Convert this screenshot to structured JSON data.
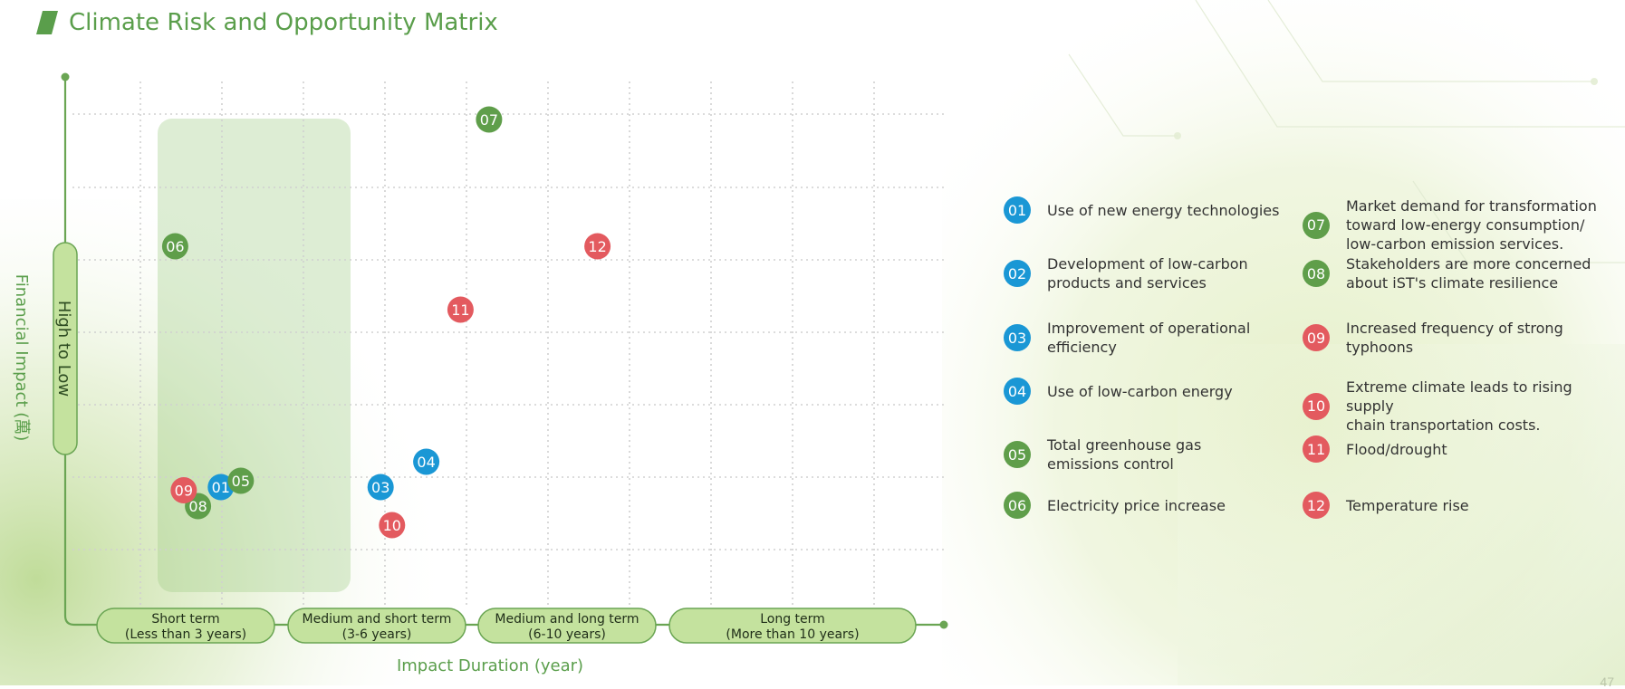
{
  "title": "Climate Risk and Opportunity Matrix",
  "page_number": "47",
  "colors": {
    "blue": "#1a97d5",
    "green": "#5f9e4a",
    "red": "#e35a5f",
    "axis": "#6aa553",
    "title": "#5a9e4b"
  },
  "chart_data": {
    "type": "scatter",
    "xlabel": "Impact Duration (year)",
    "ylabel": "Financial Impact (萬)",
    "y_axis_pill": "High to Low",
    "x_categories": [
      {
        "label": "Short term\n(Less than 3 years)"
      },
      {
        "label": "Medium and short term\n(3-6 years)"
      },
      {
        "label": "Medium and long term\n(6-10 years)"
      },
      {
        "label": "Long term\n(More than 10 years)"
      }
    ],
    "points": [
      {
        "id": "01",
        "group": "blue",
        "x": 2.6,
        "y": 1.6
      },
      {
        "id": "03",
        "group": "blue",
        "x": 5.4,
        "y": 1.6
      },
      {
        "id": "04",
        "group": "blue",
        "x": 6.2,
        "y": 2.0
      },
      {
        "id": "05",
        "group": "green",
        "x": 2.95,
        "y": 1.7
      },
      {
        "id": "06",
        "group": "green",
        "x": 1.8,
        "y": 5.4
      },
      {
        "id": "07",
        "group": "green",
        "x": 7.3,
        "y": 7.4
      },
      {
        "id": "08",
        "group": "green",
        "x": 2.2,
        "y": 1.3
      },
      {
        "id": "09",
        "group": "red",
        "x": 1.95,
        "y": 1.55
      },
      {
        "id": "10",
        "group": "red",
        "x": 5.6,
        "y": 1.0
      },
      {
        "id": "11",
        "group": "red",
        "x": 6.8,
        "y": 4.4
      },
      {
        "id": "12",
        "group": "red",
        "x": 9.2,
        "y": 5.4
      }
    ]
  },
  "legend": {
    "items": [
      {
        "id": "01",
        "group": "blue",
        "label": "Use of new energy technologies"
      },
      {
        "id": "02",
        "group": "blue",
        "label": "Development of low-carbon\nproducts and services"
      },
      {
        "id": "03",
        "group": "blue",
        "label": "Improvement of operational\nefficiency"
      },
      {
        "id": "04",
        "group": "blue",
        "label": "Use of low-carbon energy"
      },
      {
        "id": "05",
        "group": "green",
        "label": "Total greenhouse gas\nemissions control"
      },
      {
        "id": "06",
        "group": "green",
        "label": "Electricity price increase"
      },
      {
        "id": "07",
        "group": "green",
        "label": "Market demand for transformation\ntoward low-energy consumption/\nlow-carbon emission services."
      },
      {
        "id": "08",
        "group": "green",
        "label": "Stakeholders are more concerned\nabout iST's climate resilience"
      },
      {
        "id": "09",
        "group": "red",
        "label": "Increased frequency of strong\ntyphoons"
      },
      {
        "id": "10",
        "group": "red",
        "label": "Extreme climate leads to rising supply\nchain transportation costs."
      },
      {
        "id": "11",
        "group": "red",
        "label": "Flood/drought"
      },
      {
        "id": "12",
        "group": "red",
        "label": "Temperature rise"
      }
    ]
  }
}
